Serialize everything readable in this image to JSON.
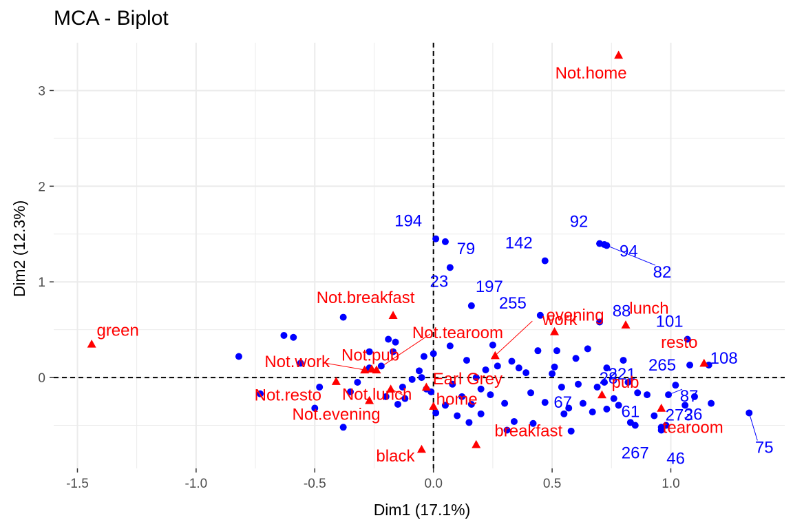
{
  "chart_data": {
    "type": "scatter",
    "title": "MCA - Biplot",
    "xlabel": "Dim1 (17.1%)",
    "ylabel": "Dim2 (12.3%)",
    "xlim": [
      -1.6,
      1.48
    ],
    "ylim": [
      -0.95,
      3.5
    ],
    "xticks": [
      -1.5,
      -1.0,
      -0.5,
      0.0,
      0.5,
      1.0
    ],
    "xtick_labels": [
      "-1.5",
      "-1.0",
      "-0.5",
      "0.0",
      "0.5",
      "1.0"
    ],
    "yticks": [
      0,
      1,
      2,
      3
    ],
    "ytick_labels": [
      "0",
      "1",
      "2",
      "3"
    ],
    "grid": true,
    "reference_lines": {
      "x": 0,
      "y": 0,
      "style": "dashed"
    },
    "colors": {
      "individuals": "#0000ff",
      "variables": "#ff0000",
      "grid": "#ebebeb"
    },
    "individuals": {
      "marker": "circle",
      "labeled": [
        {
          "label": "194",
          "x": 0.01,
          "y": 1.45
        },
        {
          "label": "23",
          "x": 0.07,
          "y": 1.15
        },
        {
          "label": "79",
          "x": 0.05,
          "y": 1.42
        },
        {
          "label": "197",
          "x": 0.16,
          "y": 0.75
        },
        {
          "label": "142",
          "x": 0.47,
          "y": 1.22
        },
        {
          "label": "255",
          "x": 0.45,
          "y": 0.65
        },
        {
          "label": "92",
          "x": 0.7,
          "y": 1.4
        },
        {
          "label": "94",
          "x": 0.73,
          "y": 1.38
        },
        {
          "label": "82",
          "x": 0.72,
          "y": 1.39
        },
        {
          "label": "88",
          "x": 0.7,
          "y": 0.58
        },
        {
          "label": "221",
          "x": 0.8,
          "y": 0.18
        },
        {
          "label": "101",
          "x": 1.07,
          "y": 0.4
        },
        {
          "label": "265",
          "x": 1.08,
          "y": 0.13
        },
        {
          "label": "108",
          "x": 1.16,
          "y": 0.13
        },
        {
          "label": "28",
          "x": 0.72,
          "y": -0.05
        },
        {
          "label": "87",
          "x": 0.99,
          "y": -0.18
        },
        {
          "label": "61",
          "x": 0.83,
          "y": -0.47
        },
        {
          "label": "273",
          "x": 0.96,
          "y": -0.52
        },
        {
          "label": "26",
          "x": 1.17,
          "y": -0.27
        },
        {
          "label": "75",
          "x": 1.33,
          "y": -0.37
        },
        {
          "label": "267",
          "x": 0.85,
          "y": -0.5
        },
        {
          "label": "46",
          "x": 0.98,
          "y": -0.5
        },
        {
          "label": "67",
          "x": 0.58,
          "y": -0.56
        }
      ],
      "unlabeled": [
        [
          -0.82,
          0.22
        ],
        [
          -0.63,
          0.44
        ],
        [
          -0.59,
          0.42
        ],
        [
          -0.56,
          0.15
        ],
        [
          -0.73,
          -0.17
        ],
        [
          -0.48,
          -0.1
        ],
        [
          -0.5,
          -0.32
        ],
        [
          -0.38,
          0.63
        ],
        [
          -0.38,
          -0.52
        ],
        [
          -0.35,
          -0.15
        ],
        [
          -0.32,
          -0.05
        ],
        [
          -0.27,
          0.27
        ],
        [
          -0.27,
          0.1
        ],
        [
          -0.22,
          0.12
        ],
        [
          -0.2,
          -0.2
        ],
        [
          -0.19,
          0.4
        ],
        [
          -0.17,
          0.27
        ],
        [
          -0.16,
          0.37
        ],
        [
          -0.15,
          -0.28
        ],
        [
          -0.13,
          -0.1
        ],
        [
          -0.12,
          -0.22
        ],
        [
          -0.09,
          -0.02
        ],
        [
          -0.06,
          0.07
        ],
        [
          -0.05,
          0.0
        ],
        [
          -0.04,
          0.22
        ],
        [
          -0.03,
          -0.12
        ],
        [
          0.0,
          0.25
        ],
        [
          0.01,
          -0.37
        ],
        [
          0.05,
          -0.29
        ],
        [
          0.07,
          0.33
        ],
        [
          0.1,
          -0.4
        ],
        [
          0.12,
          -0.2
        ],
        [
          0.14,
          0.18
        ],
        [
          0.16,
          -0.28
        ],
        [
          0.18,
          0.0
        ],
        [
          0.2,
          -0.12
        ],
        [
          0.22,
          0.08
        ],
        [
          0.24,
          -0.18
        ],
        [
          0.27,
          0.12
        ],
        [
          0.3,
          -0.27
        ],
        [
          0.34,
          -0.46
        ],
        [
          0.36,
          0.1
        ],
        [
          0.39,
          0.05
        ],
        [
          0.41,
          -0.16
        ],
        [
          0.44,
          0.28
        ],
        [
          0.47,
          -0.26
        ],
        [
          0.5,
          0.04
        ],
        [
          0.52,
          0.28
        ],
        [
          0.54,
          -0.1
        ],
        [
          0.57,
          -0.32
        ],
        [
          0.6,
          0.2
        ],
        [
          0.61,
          -0.07
        ],
        [
          0.65,
          0.3
        ],
        [
          0.67,
          -0.36
        ],
        [
          0.69,
          -0.1
        ],
        [
          0.73,
          0.1
        ],
        [
          0.76,
          -0.22
        ],
        [
          0.78,
          -0.29
        ],
        [
          0.82,
          -0.05
        ],
        [
          0.86,
          -0.16
        ],
        [
          0.9,
          -0.18
        ],
        [
          0.93,
          -0.4
        ],
        [
          0.96,
          -0.55
        ],
        [
          1.02,
          -0.08
        ],
        [
          1.06,
          -0.29
        ],
        [
          1.1,
          -0.2
        ],
        [
          0.31,
          -0.55
        ],
        [
          0.42,
          -0.48
        ],
        [
          0.2,
          -0.38
        ],
        [
          0.15,
          -0.47
        ],
        [
          -0.01,
          -0.15
        ],
        [
          0.08,
          -0.07
        ],
        [
          0.25,
          0.34
        ],
        [
          0.33,
          0.17
        ],
        [
          0.51,
          0.11
        ],
        [
          0.55,
          -0.38
        ],
        [
          0.63,
          -0.27
        ],
        [
          0.73,
          -0.33
        ]
      ]
    },
    "variables": {
      "marker": "triangle",
      "points": [
        {
          "label": "green",
          "x": -1.44,
          "y": 0.35
        },
        {
          "label": "Not.breakfast",
          "x": -0.17,
          "y": 0.65
        },
        {
          "label": "Not.work",
          "x": -0.29,
          "y": 0.08
        },
        {
          "label": "Not.pub",
          "x": -0.26,
          "y": 0.09
        },
        {
          "label": "Not.tearoom",
          "x": -0.24,
          "y": 0.08
        },
        {
          "label": "Not.resto",
          "x": -0.41,
          "y": -0.04
        },
        {
          "label": "Not.lunch",
          "x": -0.18,
          "y": -0.12
        },
        {
          "label": "Not.evening",
          "x": -0.27,
          "y": -0.24
        },
        {
          "label": "Earl Grey",
          "x": -0.03,
          "y": -0.1
        },
        {
          "label": "home",
          "x": 0.0,
          "y": -0.3
        },
        {
          "label": "black",
          "x": -0.05,
          "y": -0.75
        },
        {
          "label": "breakfast",
          "x": 0.18,
          "y": -0.7
        },
        {
          "label": "evening",
          "x": 0.51,
          "y": 0.48
        },
        {
          "label": "lunch",
          "x": 0.81,
          "y": 0.55
        },
        {
          "label": "work",
          "x": 0.26,
          "y": 0.23
        },
        {
          "label": "pub",
          "x": 0.71,
          "y": -0.18
        },
        {
          "label": "resto",
          "x": 1.14,
          "y": 0.15
        },
        {
          "label": "tearoom",
          "x": 0.96,
          "y": -0.32
        },
        {
          "label": "Not.home",
          "x": 0.78,
          "y": 3.37
        }
      ]
    }
  }
}
